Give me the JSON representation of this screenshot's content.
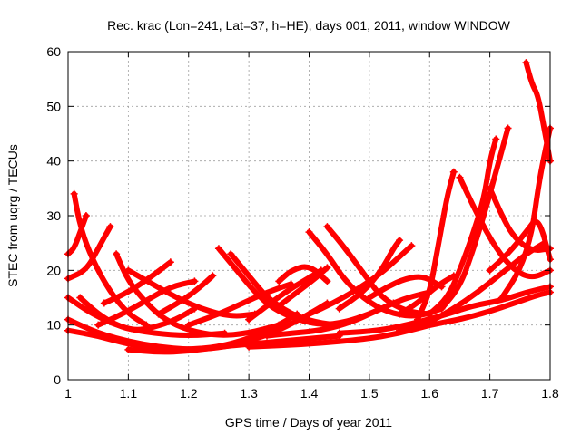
{
  "chart_data": {
    "type": "scatter",
    "title": "Rec. krac (Lon=241, Lat=37, h=HE), days 001, 2011, window WINDOW",
    "xlabel": "GPS time / Days of year 2011",
    "ylabel": "STEC from uqrg / TECUs",
    "xlim": [
      1.0,
      1.8
    ],
    "ylim": [
      0,
      60
    ],
    "xticks": [
      1,
      1.1,
      1.2,
      1.3,
      1.4,
      1.5,
      1.6,
      1.7,
      1.8
    ],
    "xtick_labels": [
      "1",
      "1.1",
      "1.2",
      "1.3",
      "1.4",
      "1.5",
      "1.6",
      "1.7",
      "1.8"
    ],
    "yticks": [
      0,
      10,
      20,
      30,
      40,
      50,
      60
    ],
    "ytick_labels": [
      "0",
      "10",
      "20",
      "30",
      "40",
      "50",
      "60"
    ],
    "grid": true,
    "marker": "plus",
    "color": "#ff0000",
    "tracks": [
      [
        [
          1.0,
          23
        ],
        [
          1.01,
          24
        ],
        [
          1.02,
          27
        ],
        [
          1.03,
          30
        ]
      ],
      [
        [
          1.01,
          34
        ],
        [
          1.02,
          28
        ],
        [
          1.04,
          22
        ],
        [
          1.07,
          16
        ],
        [
          1.1,
          12
        ],
        [
          1.13,
          10
        ]
      ],
      [
        [
          1.0,
          18.5
        ],
        [
          1.03,
          20
        ],
        [
          1.05,
          24
        ],
        [
          1.07,
          28
        ]
      ],
      [
        [
          1.0,
          15
        ],
        [
          1.04,
          12
        ],
        [
          1.09,
          9.5
        ],
        [
          1.14,
          8.5
        ],
        [
          1.2,
          8
        ],
        [
          1.26,
          8.5
        ]
      ],
      [
        [
          1.0,
          11
        ],
        [
          1.05,
          8.5
        ],
        [
          1.1,
          7
        ],
        [
          1.15,
          6
        ],
        [
          1.2,
          5.5
        ],
        [
          1.25,
          5.8
        ],
        [
          1.3,
          7
        ],
        [
          1.35,
          9
        ],
        [
          1.4,
          12
        ],
        [
          1.43,
          14
        ]
      ],
      [
        [
          1.0,
          9
        ],
        [
          1.05,
          8
        ],
        [
          1.1,
          6.5
        ],
        [
          1.15,
          5.5
        ],
        [
          1.2,
          5.5
        ],
        [
          1.25,
          6
        ],
        [
          1.3,
          7.5
        ],
        [
          1.35,
          10
        ],
        [
          1.38,
          12
        ]
      ],
      [
        [
          1.02,
          15
        ],
        [
          1.05,
          12
        ],
        [
          1.08,
          10
        ],
        [
          1.11,
          9
        ],
        [
          1.14,
          9.5
        ],
        [
          1.18,
          11
        ],
        [
          1.21,
          13
        ]
      ],
      [
        [
          1.05,
          10
        ],
        [
          1.09,
          12
        ],
        [
          1.13,
          14.5
        ],
        [
          1.17,
          17
        ],
        [
          1.21,
          18
        ]
      ],
      [
        [
          1.06,
          14
        ],
        [
          1.1,
          16
        ],
        [
          1.14,
          19
        ],
        [
          1.17,
          21.5
        ]
      ],
      [
        [
          1.08,
          23
        ],
        [
          1.1,
          18
        ],
        [
          1.13,
          14
        ],
        [
          1.16,
          11
        ],
        [
          1.2,
          9
        ],
        [
          1.25,
          8
        ],
        [
          1.3,
          8.5
        ],
        [
          1.35,
          10
        ]
      ],
      [
        [
          1.1,
          20
        ],
        [
          1.14,
          17.5
        ],
        [
          1.18,
          15
        ],
        [
          1.22,
          13
        ],
        [
          1.27,
          11.5
        ],
        [
          1.31,
          12
        ]
      ],
      [
        [
          1.15,
          12
        ],
        [
          1.19,
          14.5
        ],
        [
          1.22,
          17
        ],
        [
          1.24,
          19
        ]
      ],
      [
        [
          1.2,
          10
        ],
        [
          1.25,
          12
        ],
        [
          1.29,
          14
        ],
        [
          1.33,
          16
        ],
        [
          1.37,
          17.5
        ]
      ],
      [
        [
          1.25,
          24
        ],
        [
          1.28,
          20
        ],
        [
          1.31,
          16
        ],
        [
          1.34,
          13
        ],
        [
          1.38,
          11
        ],
        [
          1.42,
          10
        ],
        [
          1.46,
          10.5
        ],
        [
          1.5,
          12
        ],
        [
          1.54,
          14
        ]
      ],
      [
        [
          1.27,
          23
        ],
        [
          1.3,
          19
        ],
        [
          1.33,
          15
        ],
        [
          1.37,
          12
        ],
        [
          1.41,
          10.5
        ],
        [
          1.45,
          10
        ]
      ],
      [
        [
          1.3,
          11
        ],
        [
          1.33,
          13.5
        ],
        [
          1.36,
          16
        ],
        [
          1.39,
          18
        ],
        [
          1.42,
          20
        ]
      ],
      [
        [
          1.35,
          13.5
        ],
        [
          1.38,
          16
        ],
        [
          1.41,
          18.5
        ],
        [
          1.43,
          20.5
        ]
      ],
      [
        [
          1.35,
          18
        ],
        [
          1.37,
          20
        ],
        [
          1.4,
          21
        ],
        [
          1.43,
          18
        ]
      ],
      [
        [
          1.4,
          27
        ],
        [
          1.43,
          23
        ],
        [
          1.46,
          18
        ],
        [
          1.5,
          14
        ],
        [
          1.54,
          12
        ],
        [
          1.58,
          11.5
        ],
        [
          1.62,
          13
        ]
      ],
      [
        [
          1.43,
          28
        ],
        [
          1.46,
          24
        ],
        [
          1.49,
          19.5
        ],
        [
          1.52,
          15
        ],
        [
          1.56,
          12.5
        ],
        [
          1.6,
          12
        ]
      ],
      [
        [
          1.33,
          8
        ],
        [
          1.37,
          8.5
        ],
        [
          1.42,
          9
        ],
        [
          1.47,
          10.5
        ],
        [
          1.51,
          12.5
        ],
        [
          1.55,
          14.5
        ],
        [
          1.58,
          15.5
        ],
        [
          1.6,
          16
        ]
      ],
      [
        [
          1.4,
          12
        ],
        [
          1.44,
          14
        ],
        [
          1.48,
          16.5
        ],
        [
          1.52,
          19.5
        ],
        [
          1.55,
          22.5
        ],
        [
          1.57,
          24.5
        ]
      ],
      [
        [
          1.45,
          13
        ],
        [
          1.49,
          16
        ],
        [
          1.52,
          20
        ],
        [
          1.54,
          24
        ],
        [
          1.55,
          25.5
        ]
      ],
      [
        [
          1.5,
          15
        ],
        [
          1.53,
          17
        ],
        [
          1.56,
          18.5
        ],
        [
          1.59,
          19
        ],
        [
          1.62,
          17
        ]
      ],
      [
        [
          1.55,
          12
        ],
        [
          1.58,
          14
        ],
        [
          1.61,
          17
        ],
        [
          1.64,
          19
        ]
      ],
      [
        [
          1.3,
          6
        ],
        [
          1.4,
          6.5
        ],
        [
          1.5,
          7.5
        ],
        [
          1.55,
          8.5
        ],
        [
          1.6,
          10
        ],
        [
          1.65,
          11
        ],
        [
          1.7,
          12.5
        ],
        [
          1.74,
          14
        ],
        [
          1.78,
          15.5
        ],
        [
          1.8,
          16
        ]
      ],
      [
        [
          1.45,
          8.5
        ],
        [
          1.52,
          9
        ],
        [
          1.58,
          10.5
        ],
        [
          1.63,
          12
        ],
        [
          1.67,
          13.5
        ],
        [
          1.72,
          14.5
        ],
        [
          1.76,
          16
        ],
        [
          1.8,
          17
        ]
      ],
      [
        [
          1.55,
          9
        ],
        [
          1.6,
          10.5
        ],
        [
          1.64,
          13
        ],
        [
          1.68,
          16
        ],
        [
          1.72,
          19.5
        ],
        [
          1.76,
          23
        ],
        [
          1.79,
          25
        ]
      ],
      [
        [
          1.58,
          11
        ],
        [
          1.6,
          16
        ],
        [
          1.61,
          22
        ],
        [
          1.62,
          28
        ],
        [
          1.63,
          34
        ],
        [
          1.64,
          38
        ]
      ],
      [
        [
          1.6,
          12
        ],
        [
          1.63,
          15
        ],
        [
          1.65,
          20
        ],
        [
          1.67,
          26
        ],
        [
          1.69,
          33
        ],
        [
          1.7,
          40
        ],
        [
          1.71,
          44
        ]
      ],
      [
        [
          1.62,
          13
        ],
        [
          1.65,
          17
        ],
        [
          1.67,
          23
        ],
        [
          1.69,
          30
        ],
        [
          1.71,
          38
        ],
        [
          1.72,
          42
        ],
        [
          1.73,
          46
        ]
      ],
      [
        [
          1.65,
          37
        ],
        [
          1.68,
          30
        ],
        [
          1.71,
          24
        ],
        [
          1.74,
          20
        ],
        [
          1.77,
          18.5
        ],
        [
          1.8,
          20
        ]
      ],
      [
        [
          1.7,
          35
        ],
        [
          1.72,
          30
        ],
        [
          1.74,
          26
        ],
        [
          1.77,
          23.5
        ],
        [
          1.8,
          24
        ]
      ],
      [
        [
          1.72,
          15
        ],
        [
          1.75,
          20
        ],
        [
          1.77,
          27
        ],
        [
          1.78,
          35
        ],
        [
          1.79,
          41
        ],
        [
          1.8,
          46
        ]
      ],
      [
        [
          1.76,
          58
        ],
        [
          1.77,
          54
        ],
        [
          1.78,
          52
        ],
        [
          1.79,
          46
        ],
        [
          1.8,
          40
        ]
      ],
      [
        [
          1.7,
          20
        ],
        [
          1.73,
          23
        ],
        [
          1.76,
          27
        ],
        [
          1.78,
          30
        ],
        [
          1.8,
          22
        ]
      ],
      [
        [
          1.1,
          5.5
        ],
        [
          1.15,
          5
        ],
        [
          1.2,
          5.2
        ],
        [
          1.25,
          6
        ],
        [
          1.3,
          6.5
        ],
        [
          1.35,
          7
        ],
        [
          1.4,
          7.5
        ],
        [
          1.45,
          8
        ]
      ]
    ]
  }
}
